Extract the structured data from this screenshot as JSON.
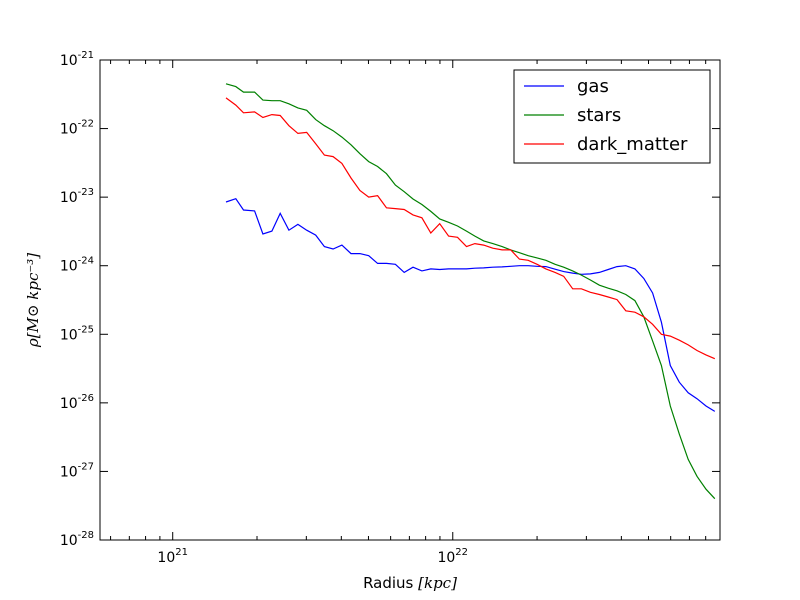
{
  "chart_data": {
    "type": "line",
    "xscale": "log",
    "yscale": "log",
    "xlim": [
      5.5e+20,
      9e+22
    ],
    "ylim": [
      1e-28,
      1e-21
    ],
    "xlabel": "Radius",
    "xlabel_unit": "[kpc]",
    "ylabel": "ρ",
    "ylabel_unit": "[M⊙ kpc⁻³]",
    "grid": false,
    "legend_position": "top-right",
    "x_ticks": [
      {
        "value": 1e+21,
        "base": "10",
        "exp": "21"
      },
      {
        "value": 1e+22,
        "base": "10",
        "exp": "22"
      }
    ],
    "y_ticks": [
      {
        "value": 1e-21,
        "base": "10",
        "exp": "-21"
      },
      {
        "value": 1e-22,
        "base": "10",
        "exp": "-22"
      },
      {
        "value": 1e-23,
        "base": "10",
        "exp": "-23"
      },
      {
        "value": 1e-24,
        "base": "10",
        "exp": "-24"
      },
      {
        "value": 1e-25,
        "base": "10",
        "exp": "-25"
      },
      {
        "value": 1e-26,
        "base": "10",
        "exp": "-26"
      },
      {
        "value": 1e-27,
        "base": "10",
        "exp": "-27"
      },
      {
        "value": 1e-28,
        "base": "10",
        "exp": "-28"
      }
    ],
    "series": [
      {
        "name": "gas",
        "color": "#0000ff",
        "points": [
          [
            1.55e+21,
            8.5e-24
          ],
          [
            1.68e+21,
            9.5e-24
          ],
          [
            1.79e+21,
            6.5e-24
          ],
          [
            1.96e+21,
            6.3e-24
          ],
          [
            2.1e+21,
            2.9e-24
          ],
          [
            2.26e+21,
            3.2e-24
          ],
          [
            2.42e+21,
            5.8e-24
          ],
          [
            2.6e+21,
            3.3e-24
          ],
          [
            2.8e+21,
            4e-24
          ],
          [
            3.01e+21,
            3.3e-24
          ],
          [
            3.24e+21,
            2.8e-24
          ],
          [
            3.48e+21,
            1.9e-24
          ],
          [
            3.74e+21,
            1.75e-24
          ],
          [
            4.02e+21,
            2e-24
          ],
          [
            4.33e+21,
            1.5e-24
          ],
          [
            4.66e+21,
            1.5e-24
          ],
          [
            5.01e+21,
            1.4e-24
          ],
          [
            5.39e+21,
            1.08e-24
          ],
          [
            5.8e+21,
            1.08e-24
          ],
          [
            6.24e+21,
            1.05e-24
          ],
          [
            6.71e+21,
            8e-25
          ],
          [
            7.21e+21,
            9.5e-25
          ],
          [
            7.76e+21,
            8.4e-25
          ],
          [
            8.35e+21,
            9e-25
          ],
          [
            8.98e+21,
            8.8e-25
          ],
          [
            9.66e+21,
            9e-25
          ],
          [
            1.04e+22,
            9e-25
          ],
          [
            1.12e+22,
            9e-25
          ],
          [
            1.2e+22,
            9.2e-25
          ],
          [
            1.29e+22,
            9.3e-25
          ],
          [
            1.39e+22,
            9.5e-25
          ],
          [
            1.5e+22,
            9.6e-25
          ],
          [
            1.61e+22,
            9.8e-25
          ],
          [
            1.73e+22,
            1e-24
          ],
          [
            1.86e+22,
            1e-24
          ],
          [
            2e+22,
            9.8e-25
          ],
          [
            2.15e+22,
            9.7e-25
          ],
          [
            2.32e+22,
            8.9e-25
          ],
          [
            2.49e+22,
            8.2e-25
          ],
          [
            2.68e+22,
            7.8e-25
          ],
          [
            2.88e+22,
            7.5e-25
          ],
          [
            3.1e+22,
            7.6e-25
          ],
          [
            3.34e+22,
            8e-25
          ],
          [
            3.59e+22,
            8.8e-25
          ],
          [
            3.86e+22,
            9.7e-25
          ],
          [
            4.15e+22,
            1e-24
          ],
          [
            4.47e+22,
            9e-25
          ],
          [
            4.81e+22,
            6.5e-25
          ],
          [
            5.17e+22,
            4e-25
          ],
          [
            5.56e+22,
            1.5e-25
          ],
          [
            5.98e+22,
            3.5e-26
          ],
          [
            6.44e+22,
            2e-26
          ],
          [
            6.93e+22,
            1.4e-26
          ],
          [
            7.45e+22,
            1.15e-26
          ],
          [
            8.02e+22,
            9e-27
          ],
          [
            8.62e+22,
            7.5e-27
          ]
        ]
      },
      {
        "name": "stars",
        "color": "#008000",
        "points": [
          [
            1.55e+21,
            4.5e-22
          ],
          [
            1.68e+21,
            4.1e-22
          ],
          [
            1.79e+21,
            3.4e-22
          ],
          [
            1.96e+21,
            3.4e-22
          ],
          [
            2.1e+21,
            2.6e-22
          ],
          [
            2.26e+21,
            2.55e-22
          ],
          [
            2.42e+21,
            2.55e-22
          ],
          [
            2.6e+21,
            2.3e-22
          ],
          [
            2.8e+21,
            2e-22
          ],
          [
            3.01e+21,
            1.85e-22
          ],
          [
            3.24e+21,
            1.35e-22
          ],
          [
            3.48e+21,
            1.1e-22
          ],
          [
            3.74e+21,
            9.3e-23
          ],
          [
            4.02e+21,
            7.5e-23
          ],
          [
            4.33e+21,
            5.8e-23
          ],
          [
            4.66e+21,
            4.3e-23
          ],
          [
            5.01e+21,
            3.3e-23
          ],
          [
            5.39e+21,
            2.8e-23
          ],
          [
            5.8e+21,
            2.2e-23
          ],
          [
            6.24e+21,
            1.5e-23
          ],
          [
            6.71e+21,
            1.2e-23
          ],
          [
            7.21e+21,
            9.4e-24
          ],
          [
            7.76e+21,
            7.8e-24
          ],
          [
            8.35e+21,
            6.2e-24
          ],
          [
            8.98e+21,
            4.8e-24
          ],
          [
            9.66e+21,
            4.3e-24
          ],
          [
            1.04e+22,
            3.8e-24
          ],
          [
            1.12e+22,
            3.2e-24
          ],
          [
            1.2e+22,
            2.7e-24
          ],
          [
            1.29e+22,
            2.3e-24
          ],
          [
            1.39e+22,
            2.1e-24
          ],
          [
            1.5e+22,
            1.9e-24
          ],
          [
            1.61e+22,
            1.7e-24
          ],
          [
            1.73e+22,
            1.55e-24
          ],
          [
            1.86e+22,
            1.4e-24
          ],
          [
            2e+22,
            1.3e-24
          ],
          [
            2.15e+22,
            1.2e-24
          ],
          [
            2.32e+22,
            1.05e-24
          ],
          [
            2.49e+22,
            9.5e-25
          ],
          [
            2.68e+22,
            8.4e-25
          ],
          [
            2.88e+22,
            7.3e-25
          ],
          [
            3.1e+22,
            6.2e-25
          ],
          [
            3.34e+22,
            5.2e-25
          ],
          [
            3.59e+22,
            4.7e-25
          ],
          [
            3.86e+22,
            4.3e-25
          ],
          [
            4.15e+22,
            3.8e-25
          ],
          [
            4.47e+22,
            3.1e-25
          ],
          [
            4.81e+22,
            1.8e-25
          ],
          [
            5.17e+22,
            8e-26
          ],
          [
            5.56e+22,
            3.5e-26
          ],
          [
            5.98e+22,
            9e-27
          ],
          [
            6.44e+22,
            3.5e-27
          ],
          [
            6.93e+22,
            1.5e-27
          ],
          [
            7.45e+22,
            8.5e-28
          ],
          [
            8.02e+22,
            5.5e-28
          ],
          [
            8.62e+22,
            4e-28
          ]
        ]
      },
      {
        "name": "dark_matter",
        "color": "#ff0000",
        "points": [
          [
            1.55e+21,
            2.8e-22
          ],
          [
            1.68e+21,
            2.2e-22
          ],
          [
            1.79e+21,
            1.7e-22
          ],
          [
            1.96e+21,
            1.75e-22
          ],
          [
            2.1e+21,
            1.45e-22
          ],
          [
            2.26e+21,
            1.6e-22
          ],
          [
            2.42e+21,
            1.55e-22
          ],
          [
            2.6e+21,
            1.1e-22
          ],
          [
            2.8e+21,
            8.5e-23
          ],
          [
            3.01e+21,
            8.8e-23
          ],
          [
            3.24e+21,
            6e-23
          ],
          [
            3.48e+21,
            4.1e-23
          ],
          [
            3.74e+21,
            3.9e-23
          ],
          [
            4.02e+21,
            3.1e-23
          ],
          [
            4.33e+21,
            1.9e-23
          ],
          [
            4.66e+21,
            1.25e-23
          ],
          [
            5.01e+21,
            1e-23
          ],
          [
            5.39e+21,
            1.05e-23
          ],
          [
            5.8e+21,
            7e-24
          ],
          [
            6.24e+21,
            6.8e-24
          ],
          [
            6.71e+21,
            6.6e-24
          ],
          [
            7.21e+21,
            5.5e-24
          ],
          [
            7.76e+21,
            5e-24
          ],
          [
            8.35e+21,
            3e-24
          ],
          [
            8.98e+21,
            4.1e-24
          ],
          [
            9.66e+21,
            2.7e-24
          ],
          [
            1.04e+22,
            2.6e-24
          ],
          [
            1.12e+22,
            1.9e-24
          ],
          [
            1.2e+22,
            2.1e-24
          ],
          [
            1.29e+22,
            2e-24
          ],
          [
            1.39e+22,
            1.8e-24
          ],
          [
            1.5e+22,
            1.7e-24
          ],
          [
            1.61e+22,
            1.7e-24
          ],
          [
            1.73e+22,
            1.25e-24
          ],
          [
            1.86e+22,
            1.2e-24
          ],
          [
            2e+22,
            1.05e-24
          ],
          [
            2.15e+22,
            9e-25
          ],
          [
            2.32e+22,
            8e-25
          ],
          [
            2.49e+22,
            7e-25
          ],
          [
            2.68e+22,
            4.6e-25
          ],
          [
            2.88e+22,
            4.6e-25
          ],
          [
            3.1e+22,
            4.1e-25
          ],
          [
            3.34e+22,
            3.8e-25
          ],
          [
            3.59e+22,
            3.5e-25
          ],
          [
            3.86e+22,
            3.2e-25
          ],
          [
            4.15e+22,
            2.2e-25
          ],
          [
            4.47e+22,
            2.1e-25
          ],
          [
            4.81e+22,
            1.8e-25
          ],
          [
            5.17e+22,
            1.4e-25
          ],
          [
            5.56e+22,
            1e-25
          ],
          [
            5.98e+22,
            9.4e-26
          ],
          [
            6.44e+22,
            8.2e-26
          ],
          [
            6.93e+22,
            7e-26
          ],
          [
            7.45e+22,
            5.8e-26
          ],
          [
            8.02e+22,
            5e-26
          ],
          [
            8.62e+22,
            4.4e-26
          ]
        ]
      }
    ]
  }
}
